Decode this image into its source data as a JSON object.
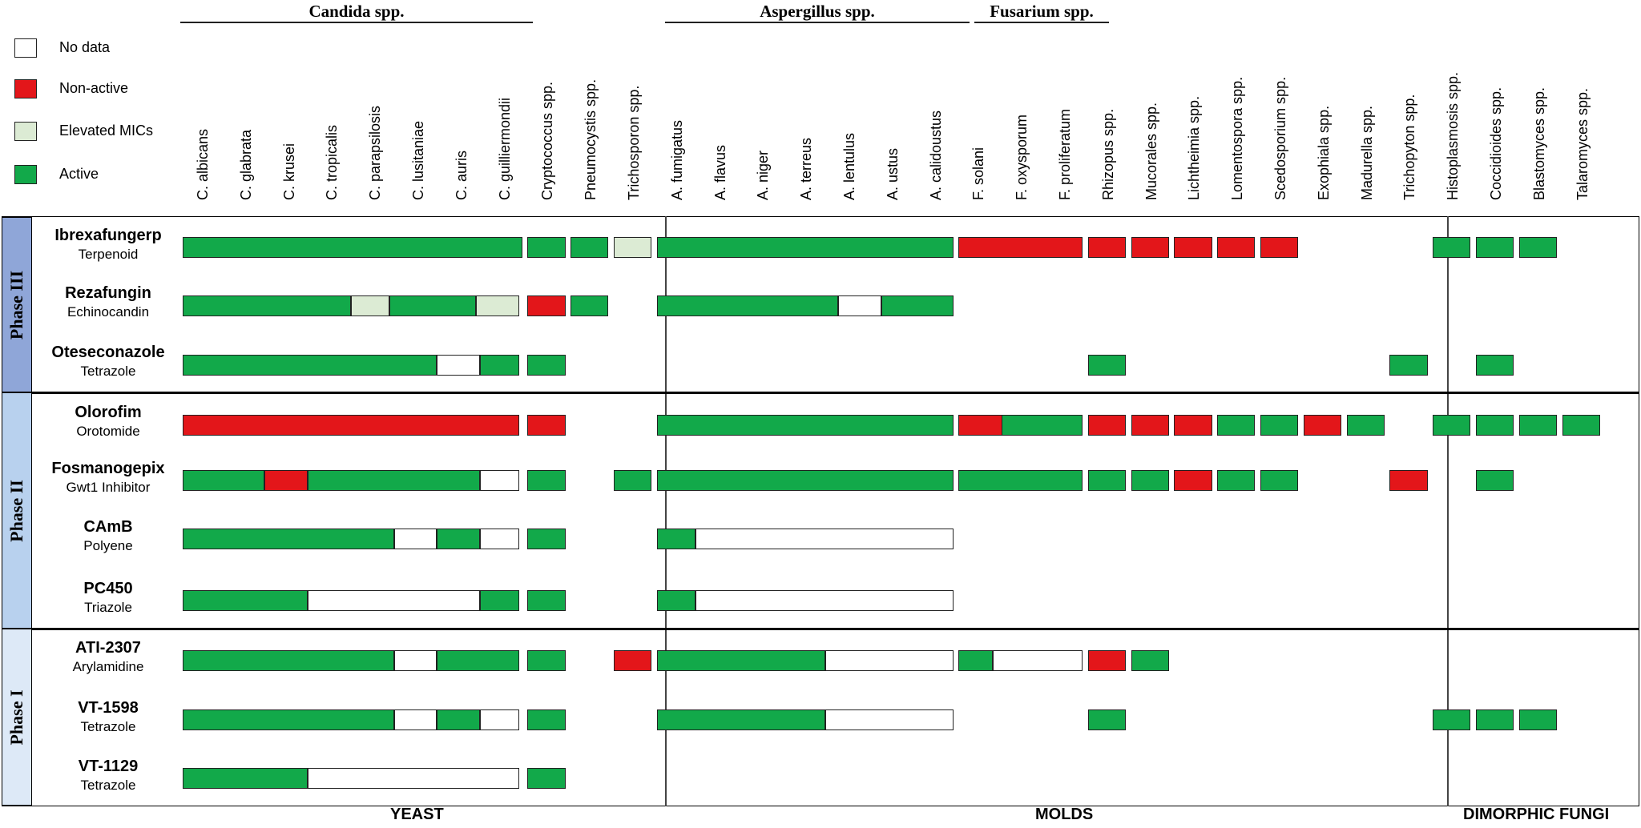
{
  "colors": {
    "nodata": "#ffffff",
    "nonactive": "#e3161a",
    "elevated": "#dcebd4",
    "active": "#12a94a",
    "phase_III": "#8fa6d8",
    "phase_II": "#b8d1ee",
    "phase_I": "#dde9f7"
  },
  "legend": [
    {
      "key": "nodata",
      "label": "No data"
    },
    {
      "key": "nonactive",
      "label": "Non-active"
    },
    {
      "key": "elevated",
      "label": "Elevated MICs"
    },
    {
      "key": "active",
      "label": "Active"
    }
  ],
  "groups": [
    {
      "label": "Candida spp.",
      "from": 0,
      "to": 7
    },
    {
      "label": "Aspergillus spp.",
      "from": 11,
      "to": 17
    },
    {
      "label": "Fusarium spp.",
      "from": 18,
      "to": 20
    }
  ],
  "columns": [
    "C. albicans",
    "C. glabrata",
    "C. krusei",
    "C. tropicalis",
    "C. parapsilosis",
    "C. lusitaniae",
    "C. auris",
    "C. guilliermondii",
    "Cryptococcus spp.",
    "Pneumocystis spp.",
    "Trichosporon spp.",
    "A. fumigatus",
    "A. flavus",
    "A. niger",
    "A. terreus",
    "A. lentulus",
    "A. ustus",
    "A. calidoustus",
    "F. solani",
    "F. oxysporum",
    "F. proliferatum",
    "Rhizopus spp.",
    "Mucorales spp.",
    "Lichtheimia spp.",
    "Lomentospora spp.",
    "Scedosporium spp.",
    "Exophiala spp.",
    "Madurella spp.",
    "Trichopyton spp.",
    "Histoplasmosis spp.",
    "Coccidioides spp.",
    "Blastomyces spp.",
    "Talaromyces spp."
  ],
  "phases": [
    {
      "label": "Phase III",
      "color_key": "phase_III",
      "drugs": [
        0,
        1,
        2
      ]
    },
    {
      "label": "Phase II",
      "color_key": "phase_II",
      "drugs": [
        3,
        4,
        5,
        6
      ]
    },
    {
      "label": "Phase I",
      "color_key": "phase_I",
      "drugs": [
        7,
        8,
        9
      ]
    }
  ],
  "drugs": [
    {
      "name": "Ibrexafungerp",
      "class": "Terpenoid",
      "bars": [
        [
          0,
          7,
          "A"
        ],
        [
          8,
          8,
          "A"
        ],
        [
          9,
          9,
          "A"
        ],
        [
          10,
          10,
          "E"
        ],
        [
          11,
          17,
          "A"
        ],
        [
          18,
          20,
          "N"
        ],
        [
          21,
          21,
          "N"
        ],
        [
          22,
          22,
          "N"
        ],
        [
          23,
          23,
          "N"
        ],
        [
          24,
          24,
          "N"
        ],
        [
          25,
          25,
          "N"
        ],
        [
          29,
          29,
          "A"
        ],
        [
          30,
          30,
          "A"
        ],
        [
          31,
          31,
          "A"
        ]
      ]
    },
    {
      "name": "Rezafungin",
      "class": "Echinocandin",
      "bars": [
        [
          0,
          3.9,
          "A"
        ],
        [
          3.9,
          4.8,
          "E"
        ],
        [
          4.8,
          6.8,
          "A"
        ],
        [
          6.8,
          7.8,
          "E"
        ],
        [
          8,
          8,
          "N"
        ],
        [
          9,
          9,
          "A"
        ],
        [
          11,
          15.2,
          "A"
        ],
        [
          15.2,
          16.2,
          "D"
        ],
        [
          16.2,
          17,
          "A"
        ]
      ]
    },
    {
      "name": "Oteseconazole",
      "class": "Tetrazole",
      "bars": [
        [
          0,
          5.9,
          "A"
        ],
        [
          5.9,
          6.9,
          "D"
        ],
        [
          6.9,
          7.8,
          "A"
        ],
        [
          8,
          8,
          "A"
        ],
        [
          21,
          21,
          "A"
        ],
        [
          28,
          28,
          "A"
        ],
        [
          30,
          30,
          "A"
        ]
      ]
    },
    {
      "name": "Olorofim",
      "class": "Orotomide",
      "bars": [
        [
          0,
          7.8,
          "N"
        ],
        [
          8,
          8,
          "N"
        ],
        [
          11,
          17,
          "A"
        ],
        [
          18,
          19,
          "N"
        ],
        [
          19,
          20,
          "A"
        ],
        [
          21,
          21,
          "N"
        ],
        [
          22,
          22,
          "N"
        ],
        [
          23,
          23,
          "N"
        ],
        [
          24,
          24,
          "A"
        ],
        [
          25,
          25,
          "A"
        ],
        [
          26,
          26,
          "N"
        ],
        [
          27,
          27,
          "A"
        ],
        [
          29,
          29,
          "A"
        ],
        [
          30,
          30,
          "A"
        ],
        [
          31,
          31,
          "A"
        ],
        [
          32,
          32,
          "A"
        ]
      ]
    },
    {
      "name": "Fosmanogepix",
      "class": "Gwt1 Inhibitor",
      "bars": [
        [
          0,
          1.9,
          "A"
        ],
        [
          1.9,
          2.9,
          "N"
        ],
        [
          2.9,
          6.9,
          "A"
        ],
        [
          6.9,
          7.8,
          "D"
        ],
        [
          8,
          8,
          "A"
        ],
        [
          10,
          10,
          "A"
        ],
        [
          11,
          17,
          "A"
        ],
        [
          18,
          20,
          "A"
        ],
        [
          21,
          21,
          "A"
        ],
        [
          22,
          22,
          "A"
        ],
        [
          23,
          23,
          "N"
        ],
        [
          24,
          24,
          "A"
        ],
        [
          25,
          25,
          "A"
        ],
        [
          28,
          28,
          "N"
        ],
        [
          30,
          30,
          "A"
        ]
      ]
    },
    {
      "name": "CAmB",
      "class": "Polyene",
      "bars": [
        [
          0,
          4.9,
          "A"
        ],
        [
          4.9,
          5.9,
          "D"
        ],
        [
          5.9,
          6.9,
          "A"
        ],
        [
          6.9,
          7.8,
          "D"
        ],
        [
          8,
          8,
          "A"
        ],
        [
          11,
          11.9,
          "A"
        ],
        [
          11.9,
          17,
          "D"
        ]
      ]
    },
    {
      "name": "PC450",
      "class": "Triazole",
      "bars": [
        [
          0,
          2.9,
          "A"
        ],
        [
          2.9,
          6.9,
          "D"
        ],
        [
          6.9,
          7.8,
          "A"
        ],
        [
          8,
          8,
          "A"
        ],
        [
          11,
          11.9,
          "A"
        ],
        [
          11.9,
          17,
          "D"
        ]
      ]
    },
    {
      "name": "ATI-2307",
      "class": "Arylamidine",
      "bars": [
        [
          0,
          4.9,
          "A"
        ],
        [
          4.9,
          5.9,
          "D"
        ],
        [
          5.9,
          7.8,
          "A"
        ],
        [
          8,
          8,
          "A"
        ],
        [
          10,
          10,
          "N"
        ],
        [
          11,
          14.9,
          "A"
        ],
        [
          14.9,
          17,
          "D"
        ],
        [
          18,
          18.8,
          "A"
        ],
        [
          18.8,
          20,
          "D"
        ],
        [
          21,
          21,
          "N"
        ],
        [
          22,
          22,
          "A"
        ]
      ]
    },
    {
      "name": "VT-1598",
      "class": "Tetrazole",
      "bars": [
        [
          0,
          4.9,
          "A"
        ],
        [
          4.9,
          5.9,
          "D"
        ],
        [
          5.9,
          6.9,
          "A"
        ],
        [
          6.9,
          7.8,
          "D"
        ],
        [
          8,
          8,
          "A"
        ],
        [
          11,
          14.9,
          "A"
        ],
        [
          14.9,
          17,
          "D"
        ],
        [
          21,
          21,
          "A"
        ],
        [
          29,
          29,
          "A"
        ],
        [
          30,
          30,
          "A"
        ],
        [
          31,
          31,
          "A"
        ]
      ]
    },
    {
      "name": "VT-1129",
      "class": "Tetrazole",
      "bars": [
        [
          0,
          2.9,
          "A"
        ],
        [
          2.9,
          7.8,
          "D"
        ],
        [
          8,
          8,
          "A"
        ]
      ]
    }
  ],
  "footer": [
    {
      "label": "YEAST"
    },
    {
      "label": "MOLDS"
    },
    {
      "label": "DIMORPHIC FUNGI"
    }
  ]
}
